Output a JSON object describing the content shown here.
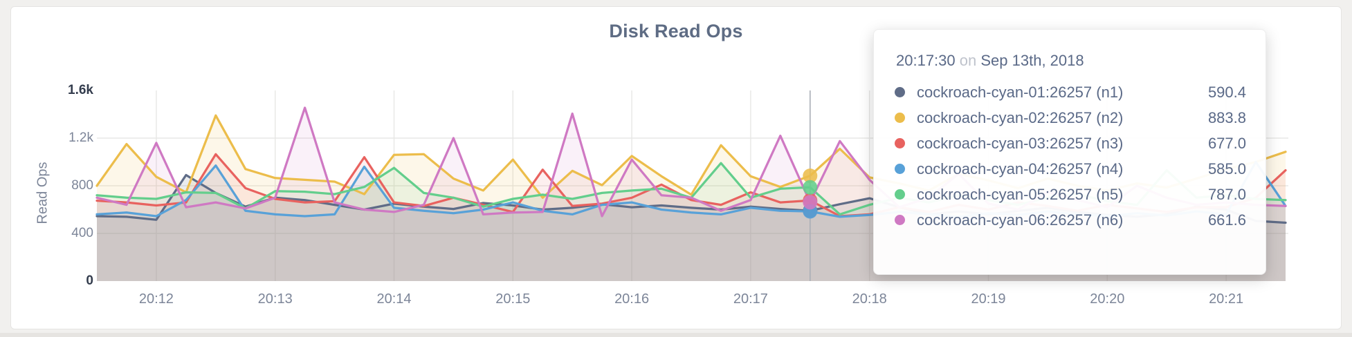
{
  "header": {
    "title": "Disk Read Ops"
  },
  "chart_data": {
    "type": "line",
    "title": "Disk Read Ops",
    "xlabel": "",
    "ylabel": "Read Ops",
    "ylim": [
      0,
      1600
    ],
    "grid": true,
    "legend_position": "tooltip",
    "x_start": "20:11:30",
    "x_step_seconds": 15,
    "y_ticks": [
      {
        "value": 0,
        "label": "0",
        "emphasis": true
      },
      {
        "value": 400,
        "label": "400",
        "emphasis": false
      },
      {
        "value": 800,
        "label": "800",
        "emphasis": false
      },
      {
        "value": 1200,
        "label": "1.2k",
        "emphasis": false
      },
      {
        "value": 1600,
        "label": "1.6k",
        "emphasis": true
      }
    ],
    "x_ticks": [
      "20:12",
      "20:13",
      "20:14",
      "20:15",
      "20:16",
      "20:17",
      "20:18",
      "20:19",
      "20:20",
      "20:21"
    ],
    "series": [
      {
        "name": "cockroach-cyan-01:26257 (n1)",
        "node": "n1",
        "color": "#5f6c87",
        "fill_opacity": 0.13,
        "hover_value": 590.4,
        "values": [
          545,
          540,
          515,
          890,
          740,
          625,
          700,
          680,
          640,
          600,
          650,
          625,
          605,
          655,
          635,
          600,
          615,
          645,
          620,
          635,
          615,
          600,
          625,
          605,
          590.4,
          645,
          695,
          620,
          560,
          585,
          560,
          590,
          615,
          580,
          555,
          540,
          560,
          625,
          600,
          505,
          490
        ]
      },
      {
        "name": "cockroach-cyan-02:26257 (n2)",
        "node": "n2",
        "color": "#ecbd4b",
        "fill_opacity": 0.12,
        "hover_value": 883.8,
        "values": [
          800,
          1150,
          875,
          745,
          1390,
          940,
          865,
          850,
          835,
          730,
          1060,
          1065,
          860,
          760,
          1020,
          700,
          925,
          805,
          1050,
          880,
          725,
          1140,
          880,
          790,
          883.8,
          1110,
          870,
          820,
          760,
          900,
          845,
          780,
          860,
          800,
          760,
          820,
          785,
          860,
          940,
          1000,
          1085
        ]
      },
      {
        "name": "cockroach-cyan-03:26257 (n3)",
        "node": "n3",
        "color": "#e8625f",
        "fill_opacity": 0.1,
        "hover_value": 677.0,
        "values": [
          675,
          660,
          635,
          660,
          1065,
          780,
          690,
          660,
          670,
          1040,
          660,
          630,
          700,
          640,
          580,
          935,
          630,
          650,
          700,
          810,
          680,
          640,
          745,
          660,
          677,
          545,
          560,
          620,
          580,
          640,
          600,
          660,
          630,
          590,
          640,
          610,
          580,
          620,
          620,
          700,
          930
        ]
      },
      {
        "name": "cockroach-cyan-04:26257 (n4)",
        "node": "n4",
        "color": "#58a1d8",
        "fill_opacity": 0.1,
        "hover_value": 585.0,
        "values": [
          560,
          575,
          545,
          680,
          970,
          590,
          560,
          545,
          560,
          960,
          615,
          590,
          570,
          600,
          660,
          590,
          560,
          640,
          660,
          600,
          575,
          560,
          615,
          590,
          585,
          540,
          555,
          580,
          560,
          540,
          570,
          555,
          585,
          560,
          545,
          570,
          550,
          585,
          560,
          1000,
          630
        ]
      },
      {
        "name": "cockroach-cyan-05:26257 (n5)",
        "node": "n5",
        "color": "#63ce8c",
        "fill_opacity": 0.1,
        "hover_value": 787.0,
        "values": [
          720,
          700,
          690,
          745,
          740,
          610,
          755,
          750,
          730,
          790,
          950,
          740,
          700,
          625,
          690,
          725,
          690,
          740,
          760,
          775,
          700,
          990,
          700,
          775,
          787,
          560,
          640,
          700,
          660,
          720,
          680,
          640,
          700,
          730,
          670,
          640,
          930,
          700,
          720,
          690,
          680
        ]
      },
      {
        "name": "cockroach-cyan-06:26257 (n6)",
        "node": "n6",
        "color": "#cf79c3",
        "fill_opacity": 0.1,
        "hover_value": 661.6,
        "values": [
          700,
          640,
          1160,
          620,
          660,
          610,
          700,
          1455,
          660,
          600,
          580,
          640,
          1200,
          560,
          575,
          580,
          1405,
          545,
          1020,
          720,
          700,
          590,
          680,
          1220,
          661.6,
          1175,
          850,
          620,
          700,
          900,
          650,
          600,
          750,
          680,
          620,
          800,
          700,
          640,
          660,
          640,
          630
        ]
      }
    ]
  },
  "hover": {
    "index": 24,
    "time": "20:17:30"
  },
  "tooltip": {
    "time": "20:17:30",
    "connector": "on",
    "date": "Sep 13th, 2018",
    "rows": [
      {
        "label": "cockroach-cyan-01:26257 (n1)",
        "value": "590.4",
        "color": "#5f6c87"
      },
      {
        "label": "cockroach-cyan-02:26257 (n2)",
        "value": "883.8",
        "color": "#ecbd4b"
      },
      {
        "label": "cockroach-cyan-03:26257 (n3)",
        "value": "677.0",
        "color": "#e8625f"
      },
      {
        "label": "cockroach-cyan-04:26257 (n4)",
        "value": "585.0",
        "color": "#58a1d8"
      },
      {
        "label": "cockroach-cyan-05:26257 (n5)",
        "value": "787.0",
        "color": "#63ce8c"
      },
      {
        "label": "cockroach-cyan-06:26257 (n6)",
        "value": "661.6",
        "color": "#cf79c3"
      }
    ]
  },
  "colors": {
    "grid": "#e7e7e5",
    "hover_line": "#a9aeb6",
    "tick_text": "#7c8598",
    "tick_text_strong": "#333c4d",
    "title_text": "#5e6c84"
  }
}
